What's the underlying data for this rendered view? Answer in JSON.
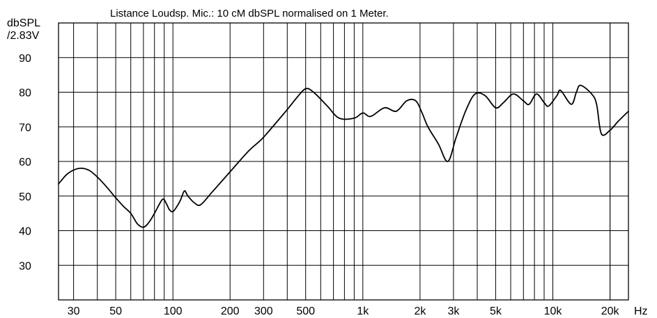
{
  "chart_data": {
    "type": "line",
    "title": "Listance Loudsp. Mic.: 10 cM dbSPL normalised on 1 Meter.",
    "ylabel_line1": "dbSPL",
    "ylabel_line2": "/2.83V",
    "x_unit": "Hz",
    "x_scale": "log",
    "xlim": [
      25,
      25000
    ],
    "ylim": [
      20,
      100
    ],
    "grid": true,
    "x_ticks": [
      {
        "value": 30,
        "label": "30"
      },
      {
        "value": 50,
        "label": "50"
      },
      {
        "value": 100,
        "label": "100"
      },
      {
        "value": 200,
        "label": "200"
      },
      {
        "value": 300,
        "label": "300"
      },
      {
        "value": 500,
        "label": "500"
      },
      {
        "value": 1000,
        "label": "1k"
      },
      {
        "value": 2000,
        "label": "2k"
      },
      {
        "value": 3000,
        "label": "3k"
      },
      {
        "value": 5000,
        "label": "5k"
      },
      {
        "value": 10000,
        "label": "10k"
      },
      {
        "value": 20000,
        "label": "20k"
      }
    ],
    "y_ticks": [
      {
        "value": 30,
        "label": "30"
      },
      {
        "value": 40,
        "label": "40"
      },
      {
        "value": 50,
        "label": "50"
      },
      {
        "value": 60,
        "label": "60"
      },
      {
        "value": 70,
        "label": "70"
      },
      {
        "value": 80,
        "label": "80"
      },
      {
        "value": 90,
        "label": "90"
      }
    ],
    "series": [
      {
        "line_color": "#000000",
        "x": [
          25,
          28,
          32,
          36,
          40,
          45,
          50,
          55,
          60,
          65,
          70,
          75,
          80,
          88,
          92,
          96,
          100,
          105,
          110,
          115,
          120,
          130,
          140,
          160,
          200,
          250,
          300,
          400,
          450,
          500,
          550,
          650,
          750,
          900,
          1000,
          1100,
          1300,
          1500,
          1700,
          1900,
          2050,
          2200,
          2500,
          2800,
          3100,
          3500,
          3900,
          4400,
          5000,
          5500,
          6200,
          7000,
          7500,
          8200,
          9000,
          9500,
          10500,
          11000,
          12500,
          13300,
          14000,
          16000,
          17000,
          18000,
          20000,
          22000,
          25000
        ],
        "y": [
          53.5,
          56.5,
          58,
          57.5,
          55.5,
          52.5,
          49.5,
          47,
          45,
          42,
          41,
          42.5,
          45,
          49,
          48,
          46,
          45.5,
          47,
          49,
          51.5,
          50,
          48,
          47.5,
          51,
          57,
          63,
          67,
          75,
          78.5,
          81,
          80,
          76,
          72.5,
          72.5,
          74,
          73,
          75.5,
          74.5,
          77.5,
          77.5,
          74,
          70,
          65,
          60,
          67,
          75,
          79.5,
          79,
          75.5,
          77,
          79.5,
          77.5,
          76.5,
          79.5,
          77,
          76,
          79,
          80.5,
          76.5,
          80,
          82,
          79.5,
          76.5,
          68,
          69,
          71.5,
          74.5
        ]
      }
    ]
  }
}
